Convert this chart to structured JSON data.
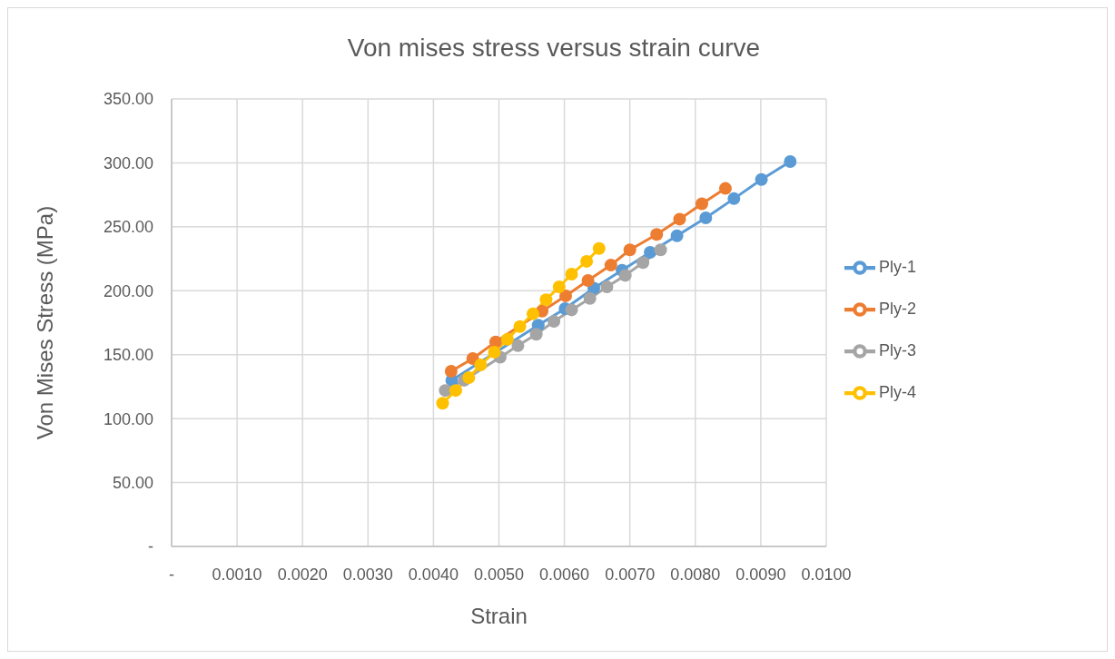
{
  "chart_data": {
    "type": "line",
    "title": "Von mises stress versus strain curve",
    "xlabel": "Strain",
    "ylabel": "Von Mises Stress (MPa)",
    "xlim": [
      0,
      0.01
    ],
    "xticks": [
      {
        "value": 0,
        "label": "-"
      },
      {
        "value": 0.001,
        "label": "0.0010"
      },
      {
        "value": 0.002,
        "label": "0.0020"
      },
      {
        "value": 0.003,
        "label": "0.0030"
      },
      {
        "value": 0.004,
        "label": "0.0040"
      },
      {
        "value": 0.005,
        "label": "0.0050"
      },
      {
        "value": 0.006,
        "label": "0.0060"
      },
      {
        "value": 0.007,
        "label": "0.0070"
      },
      {
        "value": 0.008,
        "label": "0.0080"
      },
      {
        "value": 0.009,
        "label": "0.0090"
      },
      {
        "value": 0.01,
        "label": "0.0100"
      }
    ],
    "ylim": [
      0,
      350
    ],
    "yticks": [
      {
        "value": 0,
        "label": "-"
      },
      {
        "value": 50,
        "label": "50.00"
      },
      {
        "value": 100,
        "label": "100.00"
      },
      {
        "value": 150,
        "label": "150.00"
      },
      {
        "value": 200,
        "label": "200.00"
      },
      {
        "value": 250,
        "label": "250.00"
      },
      {
        "value": 300,
        "label": "300.00"
      },
      {
        "value": 350,
        "label": "350.00"
      }
    ],
    "grid": true,
    "legend": "right",
    "marker": "circle",
    "line_style": "solid",
    "series": [
      {
        "name": "Ply-1",
        "color": "#5b9bd5",
        "x": [
          0.00428,
          0.00472,
          0.00516,
          0.0056,
          0.00601,
          0.00645,
          0.00688,
          0.00731,
          0.00772,
          0.00816,
          0.00859,
          0.00901,
          0.00945
        ],
        "values": [
          130,
          null,
          null,
          173,
          186,
          202,
          216,
          230,
          243,
          257,
          272,
          287,
          301
        ]
      },
      {
        "name": "Ply-2",
        "color": "#ed7d31",
        "x": [
          0.00427,
          0.0046,
          0.00495,
          0.0053,
          0.00566,
          0.00602,
          0.00636,
          0.00671,
          0.007,
          0.00741,
          0.00776,
          0.0081,
          0.00846
        ],
        "values": [
          137,
          147,
          160,
          null,
          184,
          196,
          208,
          220,
          232,
          244,
          256,
          268,
          280
        ]
      },
      {
        "name": "Ply-3",
        "color": "#a5a5a5",
        "x": [
          0.00418,
          0.00447,
          0.00475,
          0.00502,
          0.00529,
          0.00557,
          0.00584,
          0.00611,
          0.00639,
          0.00665,
          0.00693,
          0.0072,
          0.00747
        ],
        "values": [
          122,
          130,
          null,
          148,
          157,
          166,
          176,
          185,
          194,
          203,
          212,
          222,
          232
        ]
      },
      {
        "name": "Ply-4",
        "color": "#ffc000",
        "x": [
          0.00414,
          0.00434,
          0.00454,
          0.00472,
          0.00493,
          0.00513,
          0.00532,
          0.00552,
          0.00572,
          0.00592,
          0.00611,
          0.00634,
          0.00653
        ],
        "values": [
          112,
          122,
          132,
          142,
          152,
          162,
          172,
          182,
          193,
          203,
          213,
          223,
          233
        ]
      }
    ]
  }
}
